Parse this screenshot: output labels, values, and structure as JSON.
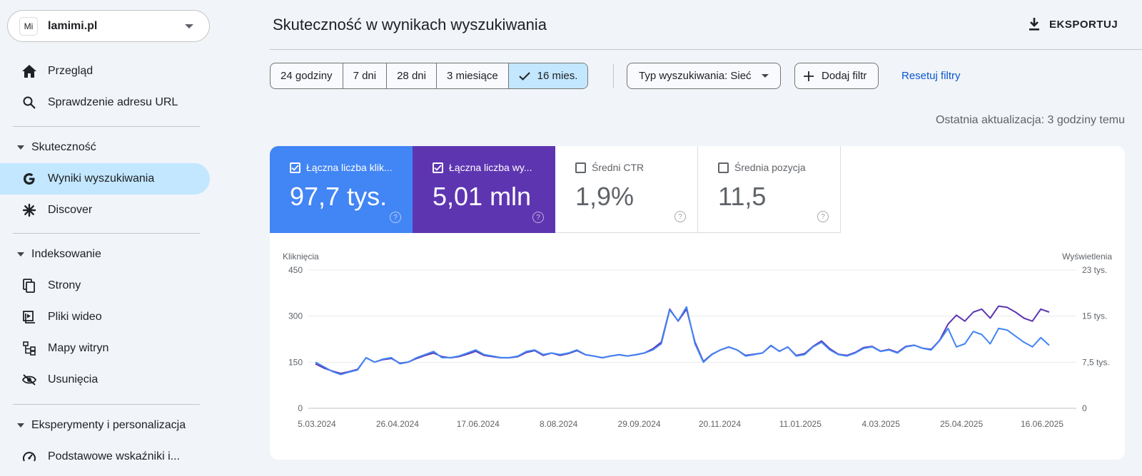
{
  "property": {
    "logo": "Mi",
    "name": "lamimi.pl"
  },
  "nav": {
    "overview": "Przegląd",
    "url_inspection": "Sprawdzenie adresu URL",
    "section_performance": "Skuteczność",
    "search_results": "Wyniki wyszukiwania",
    "discover": "Discover",
    "section_indexing": "Indeksowanie",
    "pages": "Strony",
    "videos": "Pliki wideo",
    "sitemaps": "Mapy witryn",
    "removals": "Usunięcia",
    "section_experiments": "Eksperymenty i personalizacja",
    "core_vitals": "Podstawowe wskaźniki i..."
  },
  "header": {
    "title": "Skuteczność w wynikach wyszukiwania",
    "export": "EKSPORTUJ"
  },
  "filters": {
    "ranges": [
      "24 godziny",
      "7 dni",
      "28 dni",
      "3 miesiące",
      "16 mies."
    ],
    "search_type": "Typ wyszukiwania: Sieć",
    "add_filter": "Dodaj filtr",
    "reset": "Resetuj filtry"
  },
  "updated": "Ostatnia aktualizacja: 3 godziny temu",
  "metrics": [
    {
      "label": "Łączna liczba klik...",
      "value": "97,7 tys.",
      "checked": true,
      "color": "#4285f4"
    },
    {
      "label": "Łączna liczba wy...",
      "value": "5,01 mln",
      "checked": true,
      "color": "#5e35b1"
    },
    {
      "label": "Średni CTR",
      "value": "1,9%",
      "checked": false
    },
    {
      "label": "Średnia pozycja",
      "value": "11,5",
      "checked": false
    }
  ],
  "chart_data": {
    "type": "line",
    "ylabel_left": "Kliknięcia",
    "ylabel_right": "Wyświetlenia",
    "y_left_ticks": [
      "0",
      "150",
      "300",
      "450"
    ],
    "y_right_ticks": [
      "0",
      "7,5 tys.",
      "15 tys.",
      "23 tys."
    ],
    "ylim_left": [
      0,
      450
    ],
    "ylim_right": [
      0,
      23000
    ],
    "x_ticks": [
      "5.03.2024",
      "26.04.2024",
      "17.06.2024",
      "8.08.2024",
      "29.09.2024",
      "20.11.2024",
      "11.01.2025",
      "4.03.2025",
      "25.04.2025",
      "16.06.2025"
    ],
    "grid": true,
    "series": [
      {
        "name": "Kliknięcia",
        "color": "#4285f4",
        "axis": "left",
        "values": [
          150,
          135,
          120,
          110,
          118,
          125,
          165,
          150,
          160,
          165,
          145,
          150,
          165,
          175,
          185,
          165,
          165,
          170,
          180,
          190,
          175,
          170,
          165,
          165,
          170,
          185,
          190,
          175,
          180,
          175,
          180,
          190,
          175,
          170,
          165,
          170,
          175,
          170,
          175,
          180,
          190,
          210,
          320,
          285,
          330,
          210,
          150,
          175,
          190,
          200,
          190,
          170,
          175,
          180,
          205,
          185,
          200,
          170,
          175,
          200,
          215,
          190,
          175,
          170,
          180,
          195,
          200,
          185,
          190,
          180,
          200,
          205,
          195,
          190,
          220,
          260,
          200,
          210,
          250,
          240,
          210,
          260,
          255,
          235,
          215,
          200,
          230,
          205
        ]
      },
      {
        "name": "Wyświetlenia",
        "color": "#5e35b1",
        "axis": "right",
        "values": [
          7400,
          6700,
          6200,
          5800,
          6100,
          6500,
          8400,
          7700,
          8100,
          8300,
          7500,
          7700,
          8300,
          8800,
          9200,
          8600,
          8400,
          8600,
          9000,
          9500,
          8800,
          8600,
          8400,
          8400,
          8600,
          9300,
          9600,
          8800,
          9200,
          8800,
          9100,
          9600,
          8900,
          8700,
          8400,
          8700,
          8900,
          8700,
          8900,
          9200,
          9900,
          11000,
          16500,
          14500,
          16500,
          11000,
          7800,
          9000,
          9700,
          10200,
          9700,
          8800,
          9000,
          9200,
          10400,
          9500,
          10200,
          8800,
          9100,
          10300,
          11200,
          9900,
          9000,
          8800,
          9300,
          10100,
          10300,
          9500,
          9800,
          9300,
          10300,
          10500,
          10000,
          9800,
          11300,
          14000,
          15500,
          14500,
          16000,
          16500,
          15000,
          17000,
          16800,
          16000,
          15000,
          14500,
          16500,
          16000
        ]
      }
    ]
  }
}
